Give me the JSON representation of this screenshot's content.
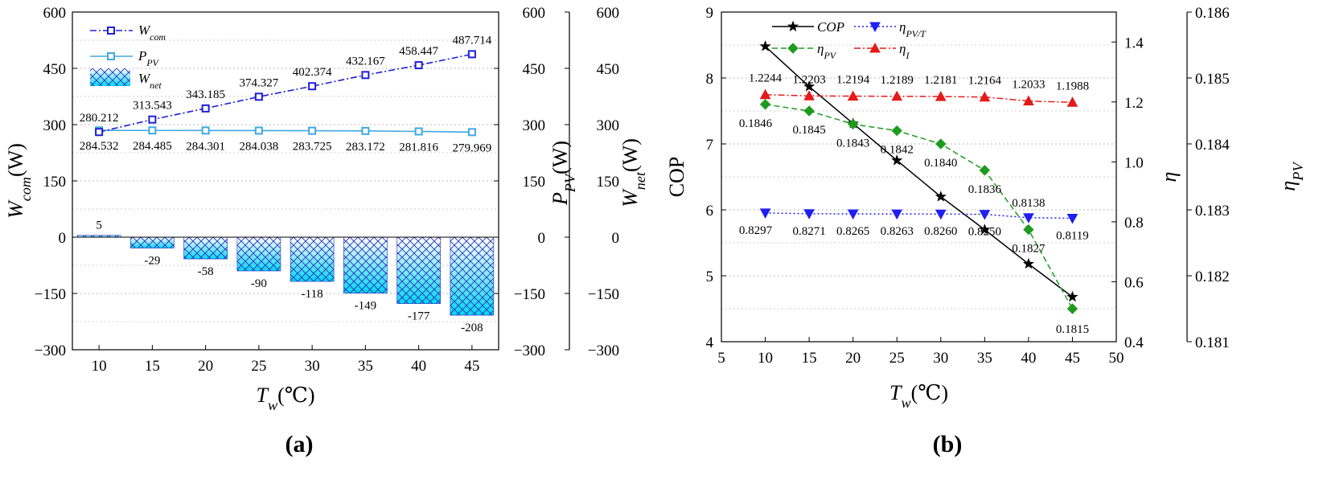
{
  "chart_data": [
    {
      "panel": "(a)",
      "type": "bar+line",
      "xlabel": "T_w(℃)",
      "categories": [
        10,
        15,
        20,
        25,
        30,
        35,
        40,
        45
      ],
      "x_ticks": [
        "10",
        "15",
        "20",
        "25",
        "30",
        "35",
        "40",
        "45"
      ],
      "y_ticks": [
        "600",
        "450",
        "300",
        "150",
        "0",
        "−150",
        "−300"
      ],
      "ylim": [
        -300,
        600
      ],
      "axes": {
        "left": {
          "main": "W",
          "sub": "com",
          "unit": "(W)"
        },
        "right1": {
          "main": "P",
          "sub": "PV",
          "unit": "(W)"
        },
        "right2": {
          "main": "W",
          "sub": "net",
          "unit": "(W)"
        }
      },
      "series": [
        {
          "name": "W_com",
          "legend_main": "W",
          "legend_sub": "com",
          "type": "line",
          "color": "#1f1fd6",
          "values": [
            280.212,
            313.543,
            343.185,
            374.327,
            402.374,
            432.167,
            458.447,
            487.714
          ],
          "labels": [
            "280.212",
            "313.543",
            "343.185",
            "374.327",
            "402.374",
            "432.167",
            "458.447",
            "487.714"
          ]
        },
        {
          "name": "P_PV",
          "legend_main": "P",
          "legend_sub": "PV",
          "type": "line",
          "color": "#3fa9e0",
          "values": [
            284.532,
            284.485,
            284.301,
            284.038,
            283.725,
            283.172,
            281.816,
            279.969
          ],
          "labels": [
            "284.532",
            "284.485",
            "284.301",
            "284.038",
            "283.725",
            "283.172",
            "281.816",
            "279.969"
          ]
        },
        {
          "name": "W_net",
          "legend_main": "W",
          "legend_sub": "net",
          "type": "bar",
          "color": "#00d8f0",
          "values": [
            5,
            -29,
            -58,
            -90,
            -118,
            -149,
            -177,
            -208
          ],
          "labels": [
            "5",
            "-29",
            "-58",
            "-90",
            "-118",
            "-149",
            "-177",
            "-208"
          ]
        }
      ]
    },
    {
      "panel": "(b)",
      "type": "line",
      "xlabel": "T_w(℃)",
      "x": [
        10,
        15,
        20,
        25,
        30,
        35,
        40,
        45
      ],
      "x_ticks": [
        "5",
        "10",
        "15",
        "20",
        "25",
        "30",
        "35",
        "40",
        "45",
        "50"
      ],
      "xlim": [
        5,
        50
      ],
      "y_left": {
        "label": "COP",
        "ticks": [
          "4",
          "5",
          "6",
          "7",
          "8",
          "9"
        ],
        "lim": [
          4,
          9
        ]
      },
      "y_right1": {
        "label": "η",
        "ticks": [
          "0.4",
          "0.6",
          "0.8",
          "1.0",
          "1.2",
          "1.4"
        ],
        "lim": [
          0.4,
          1.5
        ]
      },
      "y_right2": {
        "label_main": "η",
        "label_sub": "PV",
        "ticks": [
          "0.181",
          "0.182",
          "0.183",
          "0.184",
          "0.185",
          "0.186"
        ],
        "lim": [
          0.181,
          0.186
        ]
      },
      "series": [
        {
          "name": "COP",
          "legend_main": "COP",
          "legend_sub": "",
          "axis": "left",
          "color": "#000000",
          "marker": "star",
          "values": [
            8.48,
            7.87,
            7.31,
            6.75,
            6.2,
            5.7,
            5.18,
            4.68
          ],
          "labels": []
        },
        {
          "name": "η_PV/T",
          "legend_main": "η",
          "legend_sub": "PV/T",
          "axis": "right1",
          "color": "#1f1ff0",
          "marker": "tri-down",
          "values": [
            0.8297,
            0.8271,
            0.8265,
            0.8263,
            0.826,
            0.825,
            0.8138,
            0.8119
          ],
          "labels": [
            "0.8297",
            "0.8271",
            "0.8265",
            "0.8263",
            "0.8260",
            "0.8250",
            "0.8138",
            "0.8119"
          ]
        },
        {
          "name": "η_PV",
          "legend_main": "η",
          "legend_sub": "PV",
          "axis": "right2",
          "color": "#1e9b1e",
          "marker": "diamond",
          "values": [
            0.1846,
            0.1845,
            0.1843,
            0.1842,
            0.184,
            0.1836,
            0.1827,
            0.1815
          ],
          "labels": [
            "0.1846",
            "0.1845",
            "0.1843",
            "0.1842",
            "0.1840",
            "0.1836",
            "0.1827",
            "0.1815"
          ]
        },
        {
          "name": "η_I",
          "legend_main": "η",
          "legend_sub": "I",
          "axis": "right1",
          "color": "#e41a1a",
          "marker": "tri-up",
          "values": [
            1.2244,
            1.2203,
            1.2194,
            1.2189,
            1.2181,
            1.2164,
            1.2033,
            1.1988
          ],
          "labels": [
            "1.2244",
            "1.2203",
            "1.2194",
            "1.2189",
            "1.2181",
            "1.2164",
            "1.2033",
            "1.1988"
          ]
        }
      ]
    }
  ]
}
